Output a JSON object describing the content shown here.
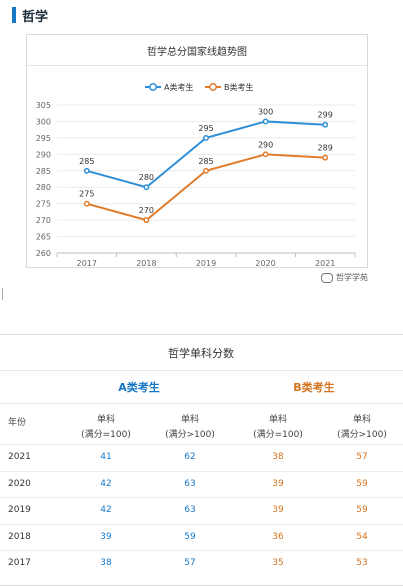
{
  "section": {
    "title": "哲学"
  },
  "chart_data": {
    "type": "line",
    "title": "哲学总分国家线趋势图",
    "categories": [
      "2017",
      "2018",
      "2019",
      "2020",
      "2021"
    ],
    "ylim": [
      260,
      305
    ],
    "yticks": [
      260,
      265,
      270,
      275,
      280,
      285,
      290,
      295,
      300,
      305
    ],
    "legend_position": "top-center",
    "grid": true,
    "series": [
      {
        "name": "A类考生",
        "color": "#2f8fd6",
        "values": [
          285,
          280,
          295,
          300,
          299
        ]
      },
      {
        "name": "B类考生",
        "color": "#e07b2a",
        "values": [
          275,
          270,
          285,
          290,
          289
        ]
      }
    ]
  },
  "watermark": {
    "text": "哲学学苑"
  },
  "table": {
    "title": "哲学单科分数",
    "group_a": "A类考生",
    "group_b": "B类考生",
    "year_header": "年份",
    "col_headers": [
      "单科\n(满分=100)",
      "单科\n(满分>100)",
      "单科\n(满分=100)",
      "单科\n(满分>100)"
    ],
    "rows": [
      {
        "year": "2021",
        "a1": "41",
        "a2": "62",
        "b1": "38",
        "b2": "57"
      },
      {
        "year": "2020",
        "a1": "42",
        "a2": "63",
        "b1": "39",
        "b2": "59"
      },
      {
        "year": "2019",
        "a1": "42",
        "a2": "63",
        "b1": "39",
        "b2": "59"
      },
      {
        "year": "2018",
        "a1": "39",
        "a2": "59",
        "b1": "36",
        "b2": "54"
      },
      {
        "year": "2017",
        "a1": "38",
        "a2": "57",
        "b1": "35",
        "b2": "53"
      }
    ]
  }
}
